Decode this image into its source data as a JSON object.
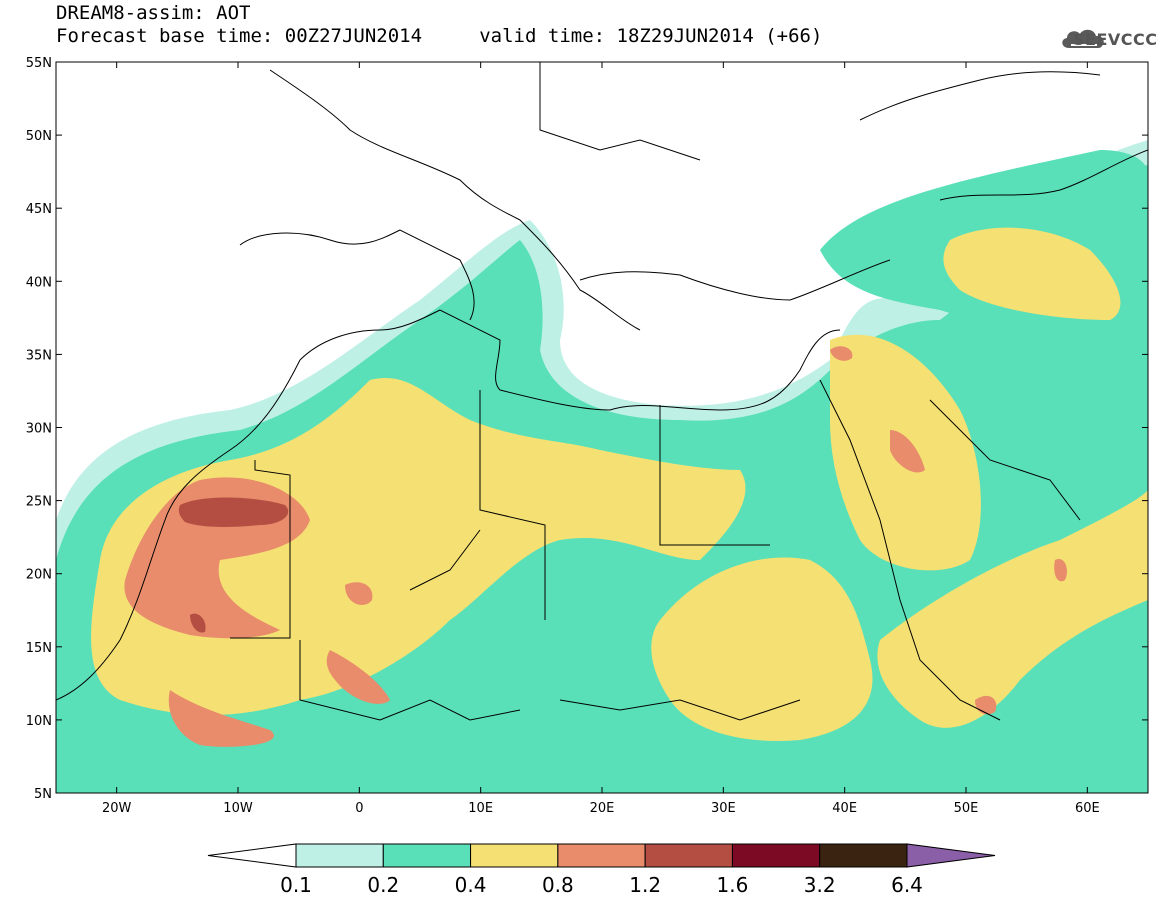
{
  "header": {
    "title_line1": "DREAM8-assim: AOT",
    "title_line2": "Forecast base time: 00Z27JUN2014     valid time: 18Z29JUN2014 (+66)"
  },
  "logo": {
    "text": "SEEVCCC",
    "icon": "cloud-icon",
    "color": "#555555"
  },
  "map": {
    "variable": "AOT",
    "lat_ticks": [
      "55N",
      "50N",
      "45N",
      "40N",
      "35N",
      "30N",
      "25N",
      "20N",
      "15N",
      "10N",
      "5N"
    ],
    "lon_ticks": [
      "20W",
      "10W",
      "0",
      "10E",
      "20E",
      "30E",
      "40E",
      "50E",
      "60E"
    ],
    "lat_range": [
      5,
      55
    ],
    "lon_range": [
      -25,
      65
    ],
    "background_color": "#ffffff",
    "boundary_color": "#000000"
  },
  "colorbar": {
    "levels": [
      "0.1",
      "0.2",
      "0.4",
      "0.8",
      "1.2",
      "1.6",
      "3.2",
      "6.4"
    ],
    "colors": [
      "#bff0e6",
      "#5ae0b8",
      "#f5e173",
      "#e88c6b",
      "#b44e43",
      "#7d0a25",
      "#3a2411",
      "#8a5fa8"
    ],
    "under_color": "#ffffff"
  }
}
